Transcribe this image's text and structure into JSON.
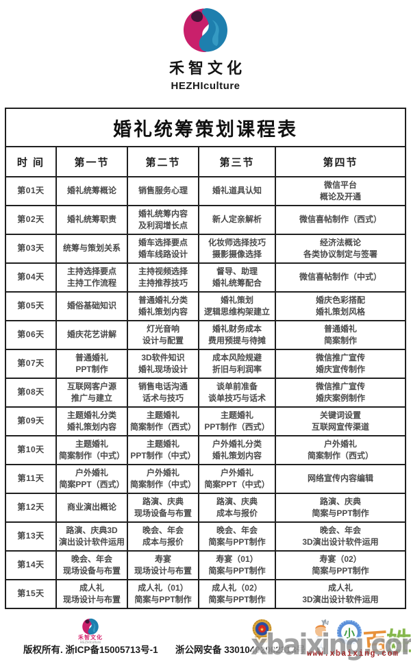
{
  "brand": {
    "name_cn": "禾智文化",
    "name_en": "HEZHIculture",
    "logo_icon": "hezhi-swirl-logo"
  },
  "table": {
    "title": "婚礼统筹策划课程表",
    "headers": [
      "时  间",
      "第一节",
      "第二节",
      "第三节",
      "第四节"
    ],
    "rows": [
      {
        "day": "第01天",
        "cells": [
          "婚礼统筹概论",
          "销售服务心理",
          "婚礼道具认知",
          "微信平台\n概论及开通"
        ]
      },
      {
        "day": "第02天",
        "cells": [
          "婚礼统筹职责",
          "婚礼统筹内容\n及利润增长点",
          "新人定亲解析",
          "微信喜帖制作（西式）"
        ]
      },
      {
        "day": "第03天",
        "cells": [
          "统筹与策划关系",
          "婚车选择要点\n婚车线路设计",
          "化妆师选择技巧\n摄影摄像选择",
          "经济法概论\n各类协议制定与签署"
        ]
      },
      {
        "day": "第04天",
        "cells": [
          "主持选择要点\n主持工作流程",
          "主持视频选择\n主持推荐技巧",
          "督导、助理\n婚礼统筹配合",
          "微信喜帖制作（中式）"
        ]
      },
      {
        "day": "第05天",
        "cells": [
          "婚俗基础知识",
          "普通婚礼分类\n婚礼策划内容",
          "婚礼策划\n逻辑思维构架建立",
          "婚庆色彩搭配\n婚礼策划风格"
        ]
      },
      {
        "day": "第06天",
        "cells": [
          "婚庆花艺讲解",
          "灯光音响\n设计与配置",
          "婚礼财务成本\n费用预提与待摊",
          "普通婚礼\n简案制作"
        ]
      },
      {
        "day": "第07天",
        "cells": [
          "普通婚礼\nPPT制作",
          "3D软件知识\n婚礼现场设计",
          "成本风险规避\n折旧与利润率",
          "微信推广宣传\n婚庆宣传制作"
        ]
      },
      {
        "day": "第08天",
        "cells": [
          "互联网客户源\n推广与建立",
          "销售电话沟通\n话术与技巧",
          "谈单前准备\n谈单技巧与话术",
          "微信推广宣传\n婚庆案例制作"
        ]
      },
      {
        "day": "第09天",
        "cells": [
          "主题婚礼分类\n婚礼策划内容",
          "主题婚礼\n简案制作（西式）",
          "主题婚礼\nPPT制作（西式）",
          "关键词设置\n互联网宣传渠道"
        ]
      },
      {
        "day": "第10天",
        "cells": [
          "主题婚礼\n简案制作（中式）",
          "主题婚礼\nPPT制作（中式）",
          "户外婚礼分类\n婚礼策划内容",
          "户外婚礼\n简案制作（西式）"
        ]
      },
      {
        "day": "第11天",
        "cells": [
          "户外婚礼\n简案PPT（西式）",
          "户外婚礼\n简案制作（中式）",
          "户外婚礼\n简案PPT（中式）",
          "网络宣传内容编辑"
        ]
      },
      {
        "day": "第12天",
        "cells": [
          "商业演出概论",
          "路演、庆典\n现场设备与布置",
          "路演、庆典\n成本与报价",
          "路演、庆典\n简案与PPT制作"
        ]
      },
      {
        "day": "第13天",
        "cells": [
          "路演、庆典3D\n演出设计软件运用",
          "晚会、年会\n成本与报价",
          "晚会、年会\n简案与PPT制作",
          "晚会、年会\n3D演出设计软件运用"
        ]
      },
      {
        "day": "第14天",
        "cells": [
          "晚会、年会\n现场设备与布置",
          "寿宴\n现场设计与布置",
          "寿宴（01）\n简案与PPT制作",
          "寿宴（02）\n简案与PPT制作"
        ]
      },
      {
        "day": "第15天",
        "cells": [
          "成人礼\n现场设计与布置",
          "成人礼（01）\n简案与PPT制作",
          "成人礼（02）\n简案与PPT制作",
          "成人礼\n3D演出设计软件运用"
        ]
      }
    ]
  },
  "footer": {
    "logo_cn": "禾智文化",
    "logo_en": "HEZHIculture",
    "copyright": "版权所有. 浙ICP备15005713号-1",
    "security_label": "浙公网安备",
    "security_number": "33010402002313号",
    "badge_icon": "police-badge"
  },
  "watermark": {
    "big_text": "xbaixing.com",
    "site_text": "www.xbaixing.com",
    "mascot_chars": [
      "小",
      "百",
      "姓"
    ]
  },
  "colors": {
    "brand_pink": "#c9206b",
    "brand_blue": "#1e7fae",
    "brand_dark": "#431438",
    "watermark_gray": "#949494",
    "watermark_red": "#a02a2a",
    "badge_gold": "#d8a33a"
  }
}
